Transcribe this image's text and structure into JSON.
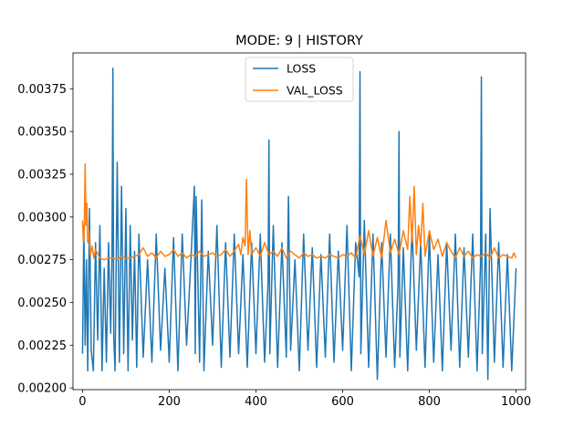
{
  "chart_data": {
    "type": "line",
    "title": "MODE: 9 | HISTORY",
    "xlabel": "",
    "ylabel": "",
    "xlim": [
      -22,
      1022
    ],
    "ylim": [
      0.00199,
      0.00396
    ],
    "xticks": [
      0,
      200,
      400,
      600,
      800,
      1000
    ],
    "xtick_labels": [
      "0",
      "200",
      "400",
      "600",
      "800",
      "1000"
    ],
    "yticks": [
      0.002,
      0.00225,
      0.0025,
      0.00275,
      0.003,
      0.00325,
      0.0035,
      0.00375
    ],
    "ytick_labels": [
      "0.00200",
      "0.00225",
      "0.00250",
      "0.00275",
      "0.00300",
      "0.00325",
      "0.00350",
      "0.00375"
    ],
    "grid": false,
    "legend_position": "upper center",
    "series": [
      {
        "name": "LOSS",
        "color": "#1f77b4",
        "x": [
          0,
          3,
          6,
          9,
          12,
          16,
          20,
          25,
          30,
          35,
          40,
          45,
          50,
          55,
          60,
          65,
          68,
          70,
          72,
          75,
          80,
          85,
          90,
          95,
          100,
          105,
          110,
          115,
          120,
          125,
          130,
          140,
          150,
          160,
          170,
          180,
          190,
          200,
          210,
          220,
          230,
          240,
          250,
          258,
          260,
          262,
          270,
          275,
          280,
          290,
          300,
          310,
          320,
          330,
          340,
          350,
          360,
          370,
          380,
          390,
          400,
          410,
          420,
          428,
          430,
          432,
          440,
          450,
          460,
          470,
          475,
          480,
          490,
          500,
          510,
          520,
          530,
          540,
          550,
          560,
          570,
          580,
          590,
          600,
          610,
          620,
          630,
          638,
          640,
          642,
          650,
          660,
          670,
          680,
          690,
          700,
          710,
          720,
          728,
          730,
          732,
          740,
          750,
          760,
          770,
          780,
          790,
          800,
          810,
          820,
          830,
          840,
          850,
          860,
          870,
          880,
          890,
          900,
          910,
          918,
          920,
          922,
          930,
          935,
          940,
          950,
          960,
          970,
          980,
          990,
          1000
        ],
        "values": [
          0.0022,
          0.00295,
          0.00225,
          0.00275,
          0.0021,
          0.00305,
          0.00222,
          0.0021,
          0.00285,
          0.00228,
          0.00295,
          0.0021,
          0.0027,
          0.00215,
          0.00285,
          0.00232,
          0.00278,
          0.00387,
          0.0023,
          0.0021,
          0.00332,
          0.00215,
          0.00318,
          0.0022,
          0.00305,
          0.0021,
          0.00295,
          0.00228,
          0.0028,
          0.00212,
          0.0029,
          0.00218,
          0.00275,
          0.00215,
          0.0029,
          0.00222,
          0.0027,
          0.00215,
          0.00288,
          0.0021,
          0.0029,
          0.00225,
          0.00275,
          0.00318,
          0.0022,
          0.00312,
          0.00215,
          0.0031,
          0.0021,
          0.0028,
          0.00225,
          0.00295,
          0.00212,
          0.00285,
          0.00218,
          0.0029,
          0.0022,
          0.00278,
          0.00212,
          0.00285,
          0.0022,
          0.0029,
          0.00215,
          0.00262,
          0.00345,
          0.0022,
          0.00295,
          0.00212,
          0.00285,
          0.00218,
          0.00312,
          0.00222,
          0.00275,
          0.0021,
          0.0029,
          0.00222,
          0.00282,
          0.00212,
          0.00278,
          0.00218,
          0.0029,
          0.00215,
          0.0028,
          0.00222,
          0.00295,
          0.0021,
          0.00285,
          0.00265,
          0.00385,
          0.0022,
          0.00298,
          0.00212,
          0.0029,
          0.00205,
          0.00285,
          0.00218,
          0.0029,
          0.00212,
          0.00262,
          0.0035,
          0.00218,
          0.00282,
          0.0021,
          0.00295,
          0.00222,
          0.00285,
          0.00212,
          0.0029,
          0.00215,
          0.00278,
          0.0021,
          0.00285,
          0.00222,
          0.0029,
          0.00212,
          0.00282,
          0.00218,
          0.0029,
          0.0021,
          0.00272,
          0.00382,
          0.0022,
          0.0029,
          0.00205,
          0.00305,
          0.00215,
          0.00285,
          0.00212,
          0.00278,
          0.0021,
          0.0027
        ]
      },
      {
        "name": "VAL_LOSS",
        "color": "#ff7f0e",
        "x": [
          0,
          2,
          4,
          6,
          8,
          10,
          12,
          15,
          18,
          22,
          26,
          30,
          40,
          50,
          60,
          70,
          80,
          90,
          100,
          110,
          120,
          130,
          140,
          150,
          160,
          170,
          180,
          190,
          200,
          210,
          220,
          230,
          240,
          250,
          260,
          270,
          280,
          290,
          300,
          310,
          320,
          330,
          340,
          350,
          360,
          365,
          370,
          375,
          378,
          382,
          386,
          390,
          400,
          410,
          420,
          430,
          440,
          450,
          460,
          470,
          480,
          490,
          500,
          510,
          520,
          530,
          540,
          550,
          560,
          570,
          580,
          590,
          600,
          610,
          620,
          630,
          640,
          650,
          660,
          670,
          680,
          690,
          700,
          710,
          720,
          730,
          740,
          750,
          755,
          760,
          765,
          770,
          775,
          780,
          785,
          790,
          800,
          810,
          820,
          830,
          840,
          850,
          860,
          870,
          880,
          890,
          900,
          910,
          920,
          930,
          940,
          950,
          960,
          970,
          980,
          990,
          995,
          1000
        ],
        "values": [
          0.00298,
          0.00285,
          0.00292,
          0.00331,
          0.00295,
          0.00308,
          0.00285,
          0.00292,
          0.00278,
          0.00283,
          0.00276,
          0.00281,
          0.00276,
          0.00275,
          0.00276,
          0.00276,
          0.00275,
          0.00277,
          0.00276,
          0.00276,
          0.00277,
          0.00278,
          0.00282,
          0.00277,
          0.00279,
          0.00276,
          0.0028,
          0.00277,
          0.00278,
          0.00281,
          0.00277,
          0.00279,
          0.00276,
          0.00278,
          0.00277,
          0.0028,
          0.00277,
          0.00278,
          0.00279,
          0.00277,
          0.00278,
          0.00281,
          0.00277,
          0.0028,
          0.00284,
          0.00278,
          0.00288,
          0.00283,
          0.00322,
          0.00278,
          0.00292,
          0.00278,
          0.00282,
          0.00277,
          0.00285,
          0.00278,
          0.0028,
          0.00277,
          0.00282,
          0.00276,
          0.0028,
          0.00278,
          0.00276,
          0.00279,
          0.00277,
          0.00278,
          0.00276,
          0.00277,
          0.00276,
          0.00278,
          0.00277,
          0.00276,
          0.00278,
          0.00277,
          0.00279,
          0.00276,
          0.00289,
          0.00278,
          0.00292,
          0.00277,
          0.00288,
          0.00276,
          0.00298,
          0.00279,
          0.00287,
          0.00278,
          0.00292,
          0.00281,
          0.00312,
          0.00285,
          0.00318,
          0.00278,
          0.00295,
          0.00283,
          0.00308,
          0.00277,
          0.00292,
          0.00281,
          0.00287,
          0.00277,
          0.00285,
          0.0028,
          0.00276,
          0.00282,
          0.00277,
          0.0028,
          0.00276,
          0.00278,
          0.00277,
          0.00279,
          0.00276,
          0.00282,
          0.00276,
          0.00278,
          0.00277,
          0.00276,
          0.00279,
          0.00276
        ]
      }
    ]
  }
}
